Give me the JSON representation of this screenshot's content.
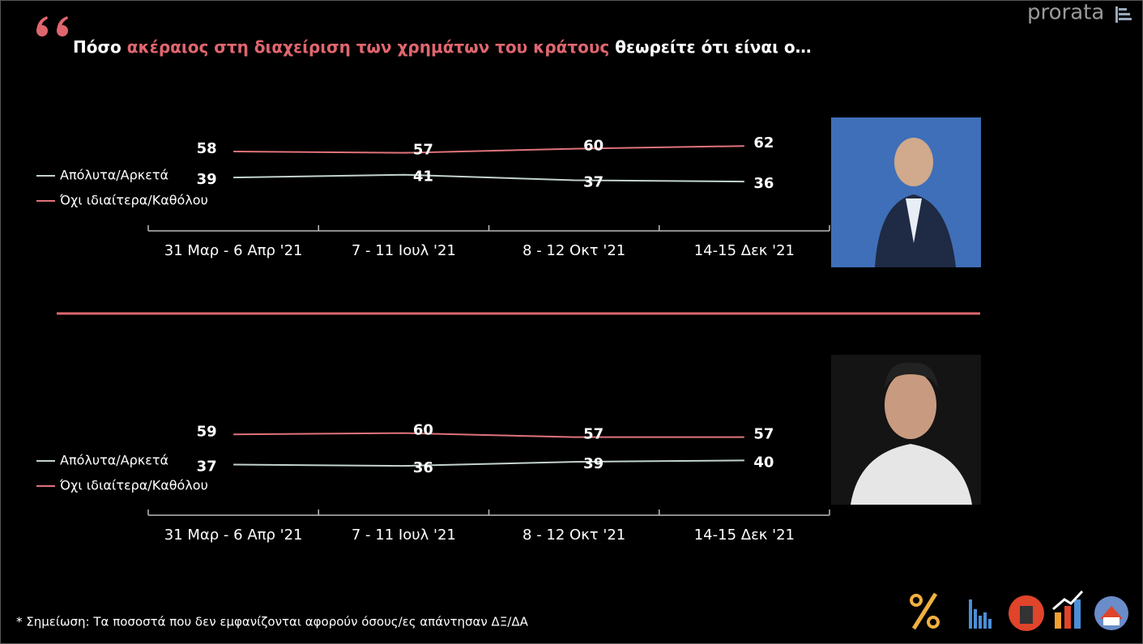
{
  "header": {
    "title": [
      {
        "text": "Πόσο ",
        "accent": false
      },
      {
        "text": "ακέραιος στη διαχείριση των χρημάτων του κράτους",
        "accent": true
      },
      {
        "text": " θεωρείτε ότι είναι ο…",
        "accent": false
      }
    ],
    "accent_color": "#e0666e",
    "logo": "prorata"
  },
  "note": "* Σημείωση: Τα ποσοστά που δεν εμφανίζονται αφορούν όσους/ες απάντησαν ΔΞ/ΔΑ",
  "chart_data": [
    {
      "type": "line",
      "categories": [
        "31 Μαρ - 6 Απρ '21",
        "7 - 11 Ιουλ '21",
        "8 - 12 Οκτ '21",
        "14-15 Δεκ '21"
      ],
      "series": [
        {
          "name": "Απόλυτα/Αρκετά",
          "color": "#c3d2ce",
          "values": [
            39,
            41,
            37,
            36
          ]
        },
        {
          "name": "Όχι ιδιαίτερα/Καθόλου",
          "color": "#e0737a",
          "values": [
            58,
            57,
            60,
            62
          ]
        }
      ]
    },
    {
      "type": "line",
      "categories": [
        "31 Μαρ - 6 Απρ '21",
        "7 - 11 Ιουλ '21",
        "8 - 12 Οκτ '21",
        "14-15 Δεκ '21"
      ],
      "series": [
        {
          "name": "Απόλυτα/Αρκετά",
          "color": "#c3d2ce",
          "values": [
            37,
            36,
            39,
            40
          ]
        },
        {
          "name": "Όχι ιδιαίτερα/Καθόλου",
          "color": "#e0737a",
          "values": [
            59,
            60,
            57,
            57
          ]
        }
      ]
    }
  ]
}
